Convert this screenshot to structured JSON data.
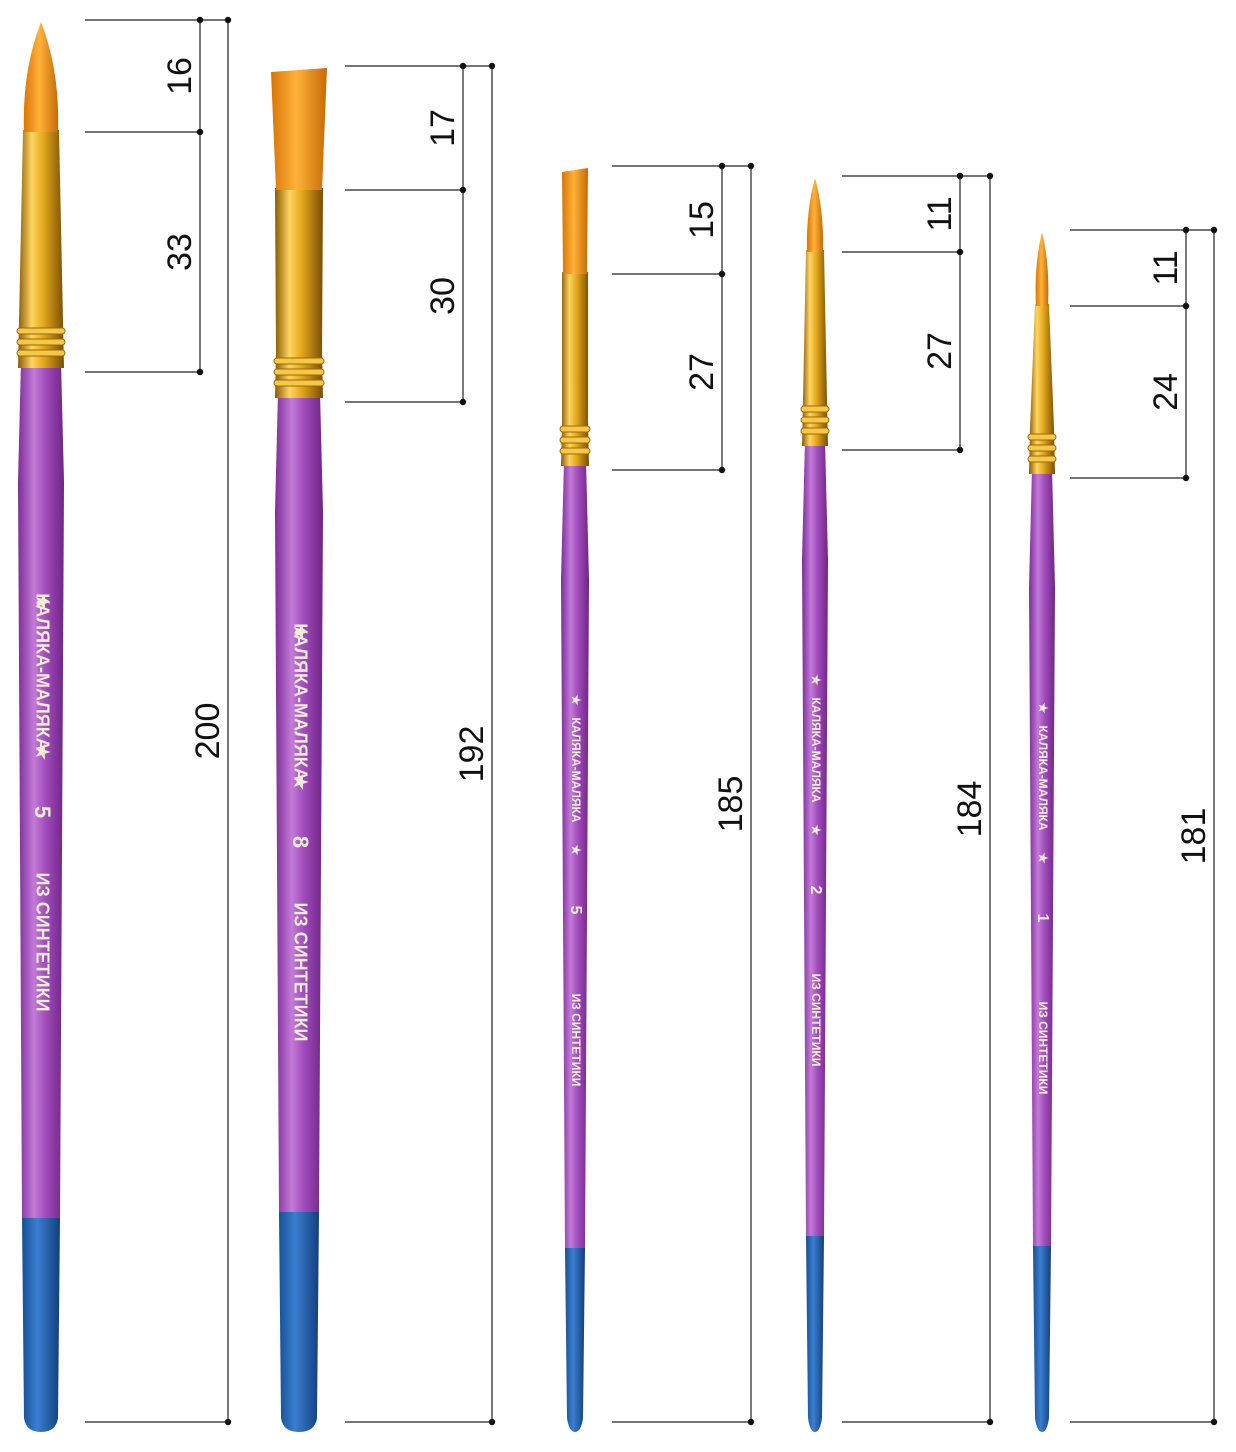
{
  "brushes": [
    {
      "number": "5",
      "brand": "КАЛЯКА-МАЛЯКА",
      "material": "ИЗ СИНТЕТИКИ",
      "tip_shape": "round",
      "hair_length": "16",
      "ferrule_length": "33",
      "total_length": "200"
    },
    {
      "number": "8",
      "brand": "КАЛЯКА-МАЛЯКА",
      "material": "ИЗ СИНТЕТИКИ",
      "tip_shape": "flat",
      "hair_length": "17",
      "ferrule_length": "30",
      "total_length": "192"
    },
    {
      "number": "5",
      "brand": "КАЛЯКА-МАЛЯКА",
      "material": "ИЗ СИНТЕТИКИ",
      "tip_shape": "flat",
      "hair_length": "15",
      "ferrule_length": "27",
      "total_length": "185"
    },
    {
      "number": "2",
      "brand": "КАЛЯКА-МАЛЯКА",
      "material": "ИЗ СИНТЕТИКИ",
      "tip_shape": "round",
      "hair_length": "11",
      "ferrule_length": "27",
      "total_length": "184"
    },
    {
      "number": "1",
      "brand": "КАЛЯКА-МАЛЯКА",
      "material": "ИЗ СИНТЕТИКИ",
      "tip_shape": "round",
      "hair_length": "11",
      "ferrule_length": "24",
      "total_length": "181"
    }
  ],
  "colors": {
    "handle": "#9a3fb4",
    "handle_light": "#c078d8",
    "tip": "#1f63b5",
    "ferrule": "#d9a514",
    "hair": "#f39a1c",
    "imprint": "#f2ecd8",
    "dimension_line": "#222222"
  }
}
